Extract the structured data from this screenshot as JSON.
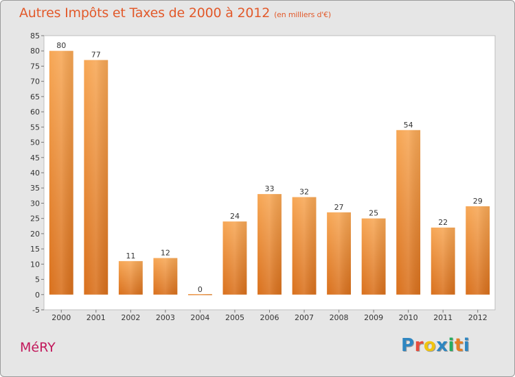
{
  "chart_data": {
    "type": "bar",
    "title": "Autres Impôts et Taxes de 2000 à 2012",
    "subtitle": "(en milliers d'€)",
    "categories": [
      "2000",
      "2001",
      "2002",
      "2003",
      "2004",
      "2005",
      "2006",
      "2007",
      "2008",
      "2009",
      "2010",
      "2011",
      "2012"
    ],
    "values": [
      80,
      77,
      11,
      12,
      0,
      24,
      33,
      32,
      27,
      25,
      54,
      22,
      29
    ],
    "xlabel": "",
    "ylabel": "",
    "ylim": [
      -5,
      85
    ],
    "yticks": [
      -5,
      0,
      5,
      10,
      15,
      20,
      25,
      30,
      35,
      40,
      45,
      50,
      55,
      60,
      65,
      70,
      75,
      80,
      85
    ],
    "grid": false,
    "bar_color": "#f39c46"
  },
  "commune": "MéRY",
  "logo": {
    "letters": [
      "P",
      "r",
      "o",
      "x",
      "i",
      "t",
      "i"
    ],
    "colors": [
      "#2e86c1",
      "#e74c3c",
      "#f1c40f",
      "#2e86c1",
      "#27ae60",
      "#e67e22",
      "#2e86c1"
    ]
  }
}
